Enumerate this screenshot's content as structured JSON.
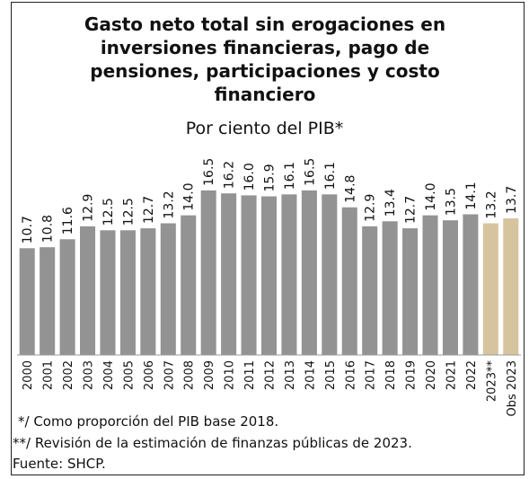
{
  "chart_data": {
    "type": "bar",
    "title": "Gasto neto total sin erogaciones en inversiones financieras, pago de pensiones, participaciones y costo financiero",
    "subtitle": "Por ciento del PIB*",
    "categories": [
      "2000",
      "2001",
      "2002",
      "2003",
      "2004",
      "2005",
      "2006",
      "2007",
      "2008",
      "2009",
      "2010",
      "2011",
      "2012",
      "2013",
      "2014",
      "2015",
      "2016",
      "2017",
      "2018",
      "2019",
      "2020",
      "2021",
      "2022",
      "2023**",
      "Obs 2023"
    ],
    "values": [
      10.7,
      10.8,
      11.6,
      12.9,
      12.5,
      12.5,
      12.7,
      13.2,
      14.0,
      16.5,
      16.2,
      16.0,
      15.9,
      16.1,
      16.5,
      16.1,
      14.8,
      12.9,
      13.4,
      12.7,
      14.0,
      13.5,
      14.1,
      13.2,
      13.7
    ],
    "value_labels": [
      "10.7",
      "10.8",
      "11.6",
      "12.9",
      "12.5",
      "12.5",
      "12.7",
      "13.2",
      "14.0",
      "16.5",
      "16.2",
      "16.0",
      "15.9",
      "16.1",
      "16.5",
      "16.1",
      "14.8",
      "12.9",
      "13.4",
      "12.7",
      "14.0",
      "13.5",
      "14.1",
      "13.2",
      "13.7"
    ],
    "colors": [
      "#939393",
      "#939393",
      "#939393",
      "#939393",
      "#939393",
      "#939393",
      "#939393",
      "#939393",
      "#939393",
      "#939393",
      "#939393",
      "#939393",
      "#939393",
      "#939393",
      "#939393",
      "#939393",
      "#939393",
      "#939393",
      "#939393",
      "#939393",
      "#939393",
      "#939393",
      "#939393",
      "#d6c49f",
      "#d6c49f"
    ],
    "ylim": [
      0,
      20
    ],
    "notes": [
      "*/ Como proporción del PIB base 2018.",
      "**/ Revisión de la estimación de finanzas públicas de 2023.",
      "Fuente: SHCP."
    ]
  }
}
